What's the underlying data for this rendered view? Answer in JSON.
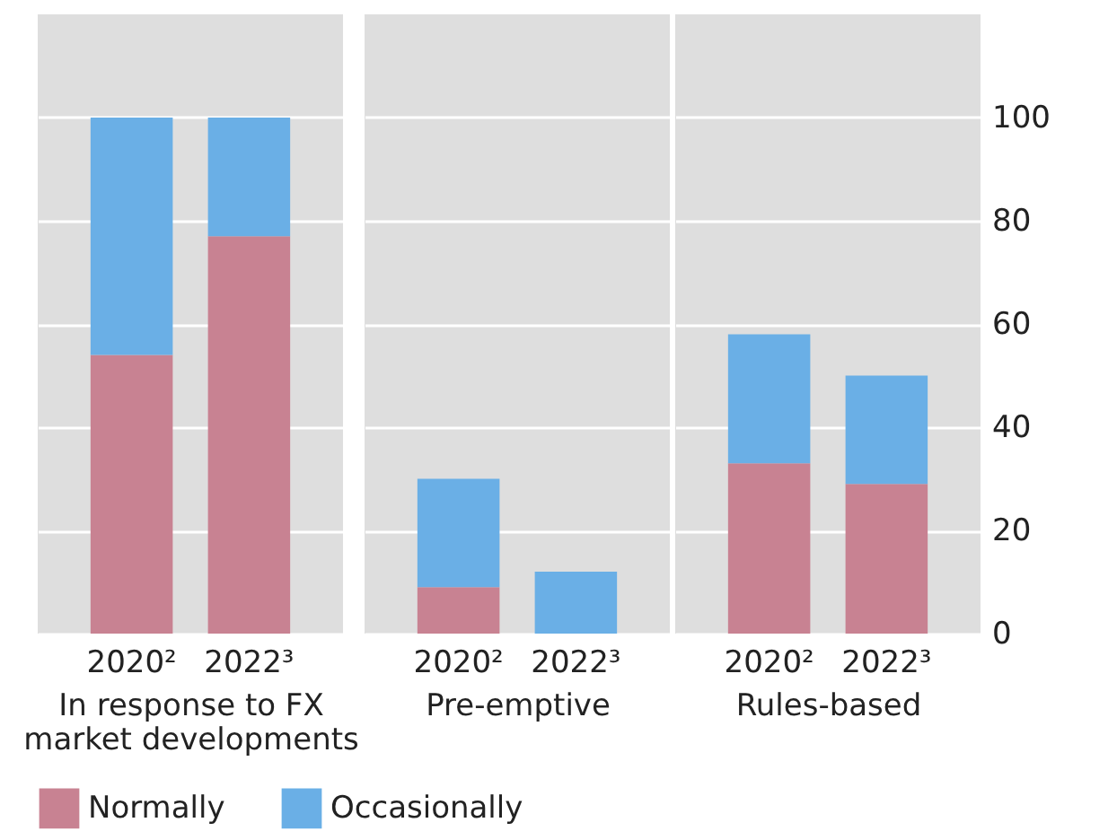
{
  "chart_data": [
    {
      "type": "bar",
      "stacked": true,
      "xlabel": "In response to FX market developments",
      "categories": [
        "2020²",
        "2022³"
      ],
      "series": [
        {
          "name": "Normally",
          "color": "#c88292",
          "values": [
            54,
            77
          ]
        },
        {
          "name": "Occasionally",
          "color": "#6aafe6",
          "values": [
            46,
            23
          ]
        }
      ],
      "ylim": [
        0,
        120
      ],
      "yticks": [
        0,
        20,
        40,
        60,
        80,
        100
      ],
      "grid": "y",
      "legend": "bottom",
      "tick_labels": "x"
    },
    {
      "type": "bar",
      "stacked": true,
      "xlabel": "Pre-emptive",
      "categories": [
        "2020²",
        "2022³"
      ],
      "series": [
        {
          "name": "Normally",
          "color": "#c88292",
          "values": [
            9,
            0
          ]
        },
        {
          "name": "Occasionally",
          "color": "#6aafe6",
          "values": [
            21,
            12
          ]
        }
      ],
      "ylim": [
        0,
        120
      ],
      "yticks": [
        0,
        20,
        40,
        60,
        80,
        100
      ],
      "grid": "y",
      "legend": "bottom",
      "tick_labels": "x"
    },
    {
      "type": "bar",
      "stacked": true,
      "xlabel": "Rules-based",
      "categories": [
        "2020²",
        "2022³"
      ],
      "series": [
        {
          "name": "Normally",
          "color": "#c88292",
          "values": [
            33,
            29
          ]
        },
        {
          "name": "Occasionally",
          "color": "#6aafe6",
          "values": [
            25,
            21
          ]
        }
      ],
      "ylim": [
        0,
        120
      ],
      "yticks": [
        0,
        20,
        40,
        60,
        80,
        100
      ],
      "grid": "y",
      "legend": "bottom"
    }
  ]
}
